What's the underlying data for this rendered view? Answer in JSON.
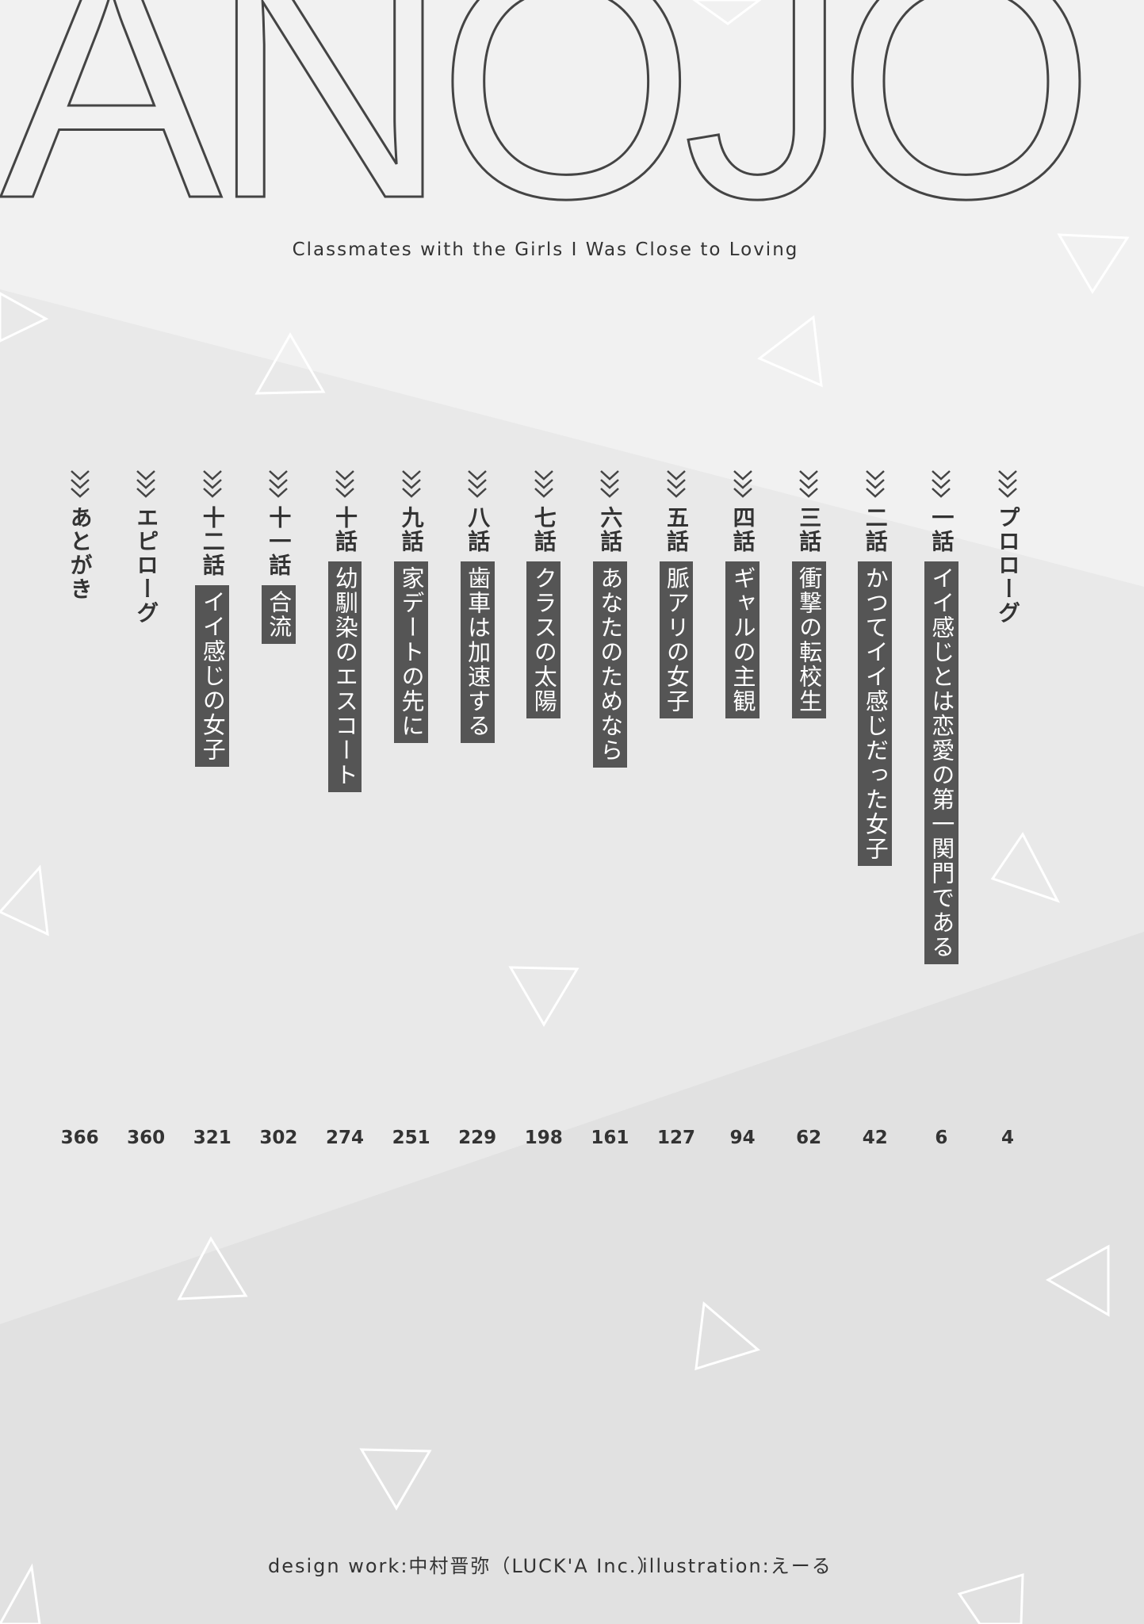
{
  "logo": "ANOJO",
  "subtitle": "Classmates with the Girls I Was Close to Loving",
  "chapters": [
    {
      "label": "プロローグ",
      "page": "4"
    },
    {
      "label": "一話",
      "title": "イイ感じとは恋愛の第一関門である",
      "page": "6"
    },
    {
      "label": "二話",
      "title": "かつてイイ感じだった女子",
      "page": "42"
    },
    {
      "label": "三話",
      "title": "衝撃の転校生",
      "page": "62"
    },
    {
      "label": "四話",
      "title": "ギャルの主観",
      "page": "94"
    },
    {
      "label": "五話",
      "title": "脈アリの女子",
      "page": "127"
    },
    {
      "label": "六話",
      "title": "あなたのためなら",
      "page": "161"
    },
    {
      "label": "七話",
      "title": "クラスの太陽",
      "page": "198"
    },
    {
      "label": "八話",
      "title": "歯車は加速する",
      "page": "229"
    },
    {
      "label": "九話",
      "title": "家デートの先に",
      "page": "251"
    },
    {
      "label": "十話",
      "title": "幼馴染のエスコート",
      "page": "274"
    },
    {
      "label": "十一話",
      "title": "合流",
      "page": "302"
    },
    {
      "label": "十二話",
      "title": "イイ感じの女子",
      "page": "321"
    },
    {
      "label": "エピローグ",
      "page": "360"
    },
    {
      "label": "あとがき",
      "page": "366"
    }
  ],
  "credits": {
    "design": "design work:中村晋弥（LUCK'A Inc.）",
    "illustration": "illustration:えーる"
  }
}
